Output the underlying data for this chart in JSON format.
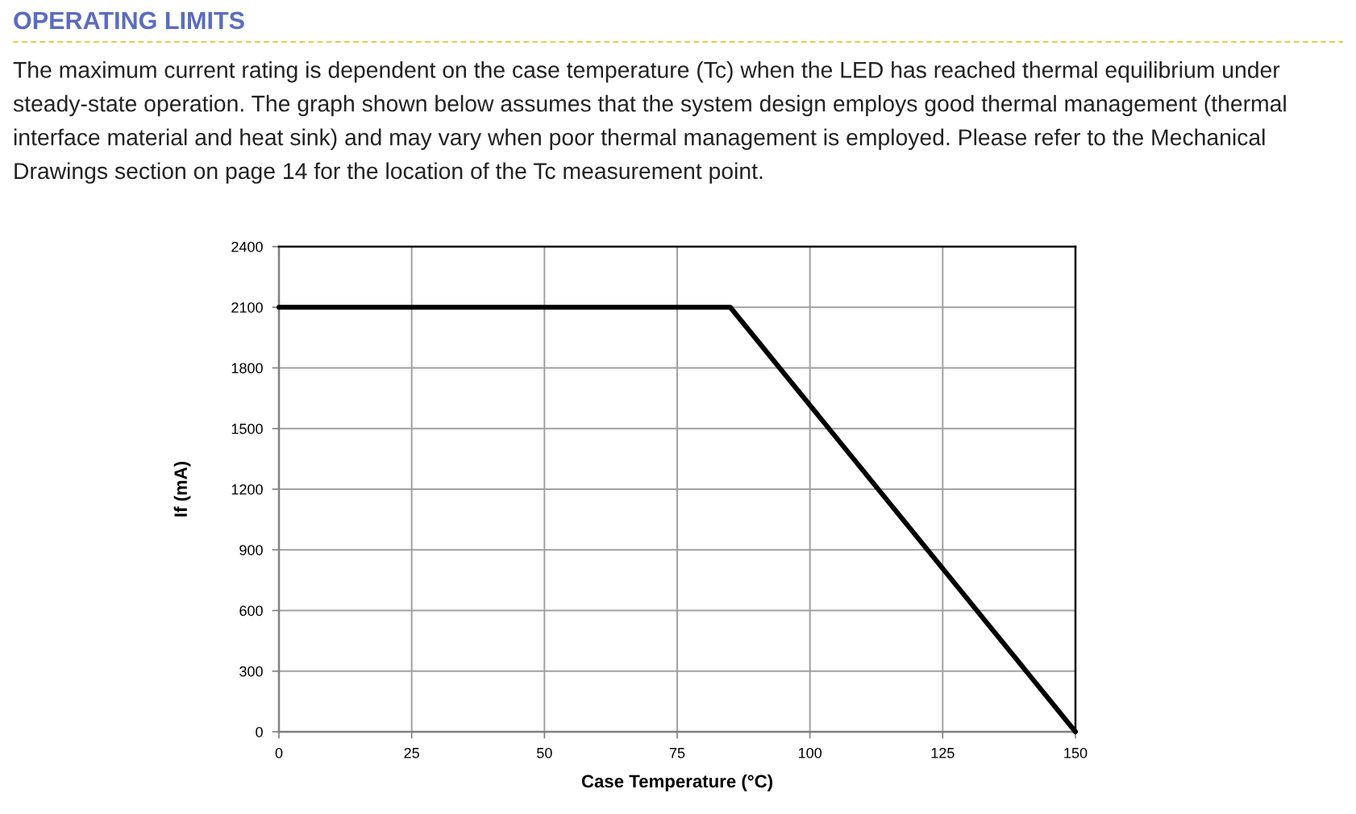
{
  "chart_data": {
    "type": "line",
    "title": "OPERATING LIMITS",
    "subtitle": "The maximum current rating is dependent on the case temperature (Tc) when the LED has reached thermal equilibrium under steady-state operation. The graph shown below assumes that the system design employs good thermal management (thermal interface material and heat sink) and may vary when poor thermal management is employed. Please refer to the Mechanical Drawings section on page 14 for the location of the Tc measurement point.",
    "xlabel": "Case Temperature (°C)",
    "ylabel": "If (mA)",
    "x": [
      0,
      85,
      150
    ],
    "series": [
      {
        "color": "#000000",
        "values": [
          2100,
          2100,
          0
        ]
      }
    ],
    "xlim": [
      0,
      150
    ],
    "ylim": [
      0,
      2400
    ],
    "xticks": [
      0,
      25,
      50,
      75,
      100,
      125,
      150
    ],
    "yticks": [
      0,
      300,
      600,
      900,
      1200,
      1500,
      1800,
      2100,
      2400
    ],
    "grid": true,
    "line_style": "solid"
  }
}
